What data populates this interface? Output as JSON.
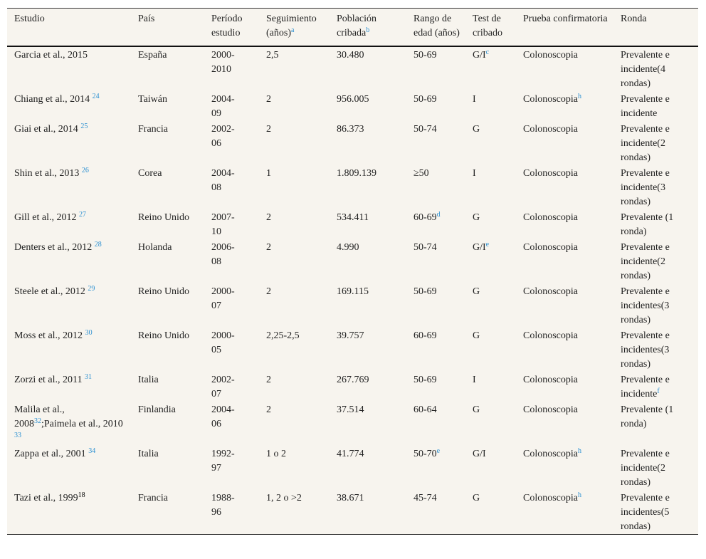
{
  "table": {
    "header": [
      [
        "Estudio"
      ],
      [
        "País"
      ],
      [
        "Período estudio"
      ],
      [
        "Seguimiento (años)",
        {
          "sup": "a"
        }
      ],
      [
        "Población cribada",
        {
          "sup": "b"
        }
      ],
      [
        "Rango de edad (años)"
      ],
      [
        "Test de cribado"
      ],
      [
        "Prueba confirmatoria"
      ],
      [
        "Ronda"
      ]
    ],
    "rows": [
      [
        [
          "Garcia et al., 2015"
        ],
        [
          "España"
        ],
        [
          "2000-2010"
        ],
        [
          "2,5"
        ],
        [
          "30.480"
        ],
        [
          "50-69"
        ],
        [
          "G/I",
          {
            "sup": "c"
          }
        ],
        [
          "Colonoscopia"
        ],
        [
          "Prevalente e incidente(4 rondas)"
        ]
      ],
      [
        [
          "Chiang et al., 2014 ",
          {
            "sup": "24"
          }
        ],
        [
          "Taiwán"
        ],
        [
          "2004-09"
        ],
        [
          "2"
        ],
        [
          "956.005"
        ],
        [
          "50-69"
        ],
        [
          "I"
        ],
        [
          "Colonoscopia",
          {
            "sup": "h"
          }
        ],
        [
          "Prevalente e incidente"
        ]
      ],
      [
        [
          "Giai et al., 2014 ",
          {
            "sup": "25"
          }
        ],
        [
          "Francia"
        ],
        [
          "2002-06"
        ],
        [
          "2"
        ],
        [
          "86.373"
        ],
        [
          "50-74"
        ],
        [
          "G"
        ],
        [
          "Colonoscopia"
        ],
        [
          "Prevalente e incidente(2 rondas)"
        ]
      ],
      [
        [
          "Shin et al., 2013 ",
          {
            "sup": "26"
          }
        ],
        [
          "Corea"
        ],
        [
          "2004-08"
        ],
        [
          "1"
        ],
        [
          "1.809.139"
        ],
        [
          "≥50"
        ],
        [
          "I"
        ],
        [
          "Colonoscopia"
        ],
        [
          "Prevalente e incidente(3 rondas)"
        ]
      ],
      [
        [
          "Gill et al., 2012 ",
          {
            "sup": "27"
          }
        ],
        [
          "Reino Unido"
        ],
        [
          "2007-10"
        ],
        [
          "2"
        ],
        [
          "534.411"
        ],
        [
          "60-69",
          {
            "sup": "d"
          }
        ],
        [
          "G"
        ],
        [
          "Colonoscopia"
        ],
        [
          "Prevalente (1 ronda)"
        ]
      ],
      [
        [
          "Denters et al., 2012 ",
          {
            "sup": "28"
          }
        ],
        [
          "Holanda"
        ],
        [
          "2006-08"
        ],
        [
          "2"
        ],
        [
          "4.990"
        ],
        [
          "50-74"
        ],
        [
          "G/I",
          {
            "sup": "e"
          }
        ],
        [
          "Colonoscopia"
        ],
        [
          "Prevalente e incidente(2 rondas)"
        ]
      ],
      [
        [
          "Steele et al., 2012 ",
          {
            "sup": "29"
          }
        ],
        [
          "Reino Unido"
        ],
        [
          "2000-07"
        ],
        [
          "2"
        ],
        [
          "169.115"
        ],
        [
          "50-69"
        ],
        [
          "G"
        ],
        [
          "Colonoscopia"
        ],
        [
          "Prevalente e incidentes(3 rondas)"
        ]
      ],
      [
        [
          "Moss et al., 2012 ",
          {
            "sup": "30"
          }
        ],
        [
          "Reino Unido"
        ],
        [
          "2000-05"
        ],
        [
          "2,25-2,5"
        ],
        [
          "39.757"
        ],
        [
          "60-69"
        ],
        [
          "G"
        ],
        [
          "Colonoscopia"
        ],
        [
          "Prevalente e incidentes(3 rondas)"
        ]
      ],
      [
        [
          "Zorzi et al., 2011 ",
          {
            "sup": "31"
          }
        ],
        [
          "Italia"
        ],
        [
          "2002-07"
        ],
        [
          "2"
        ],
        [
          "267.769"
        ],
        [
          "50-69"
        ],
        [
          "I"
        ],
        [
          "Colonoscopia"
        ],
        [
          "Prevalente e incidente",
          {
            "sup": "f"
          }
        ]
      ],
      [
        [
          "Malila et al., 2008",
          {
            "sup": "32"
          },
          ";Paimela et al., 2010 ",
          {
            "sup": "33"
          }
        ],
        [
          "Finlandia"
        ],
        [
          "2004-06"
        ],
        [
          "2"
        ],
        [
          "37.514"
        ],
        [
          "60-64"
        ],
        [
          "G"
        ],
        [
          "Colonoscopia"
        ],
        [
          "Prevalente (1 ronda)"
        ]
      ],
      [
        [
          "Zappa et al., 2001 ",
          {
            "sup": "34"
          }
        ],
        [
          "Italia"
        ],
        [
          "1992-97"
        ],
        [
          "1 o 2"
        ],
        [
          "41.774"
        ],
        [
          "50-70",
          {
            "sup": "e"
          }
        ],
        [
          "G/I"
        ],
        [
          "Colonoscopia",
          {
            "sup": "h"
          }
        ],
        [
          "Prevalente e incidente(2 rondas)"
        ]
      ],
      [
        [
          "Tazi et al., 1999",
          {
            "sup": "18",
            "color": "#000000"
          }
        ],
        [
          "Francia"
        ],
        [
          "1988-96"
        ],
        [
          "1, 2 o >2"
        ],
        [
          "38.671"
        ],
        [
          "45-74"
        ],
        [
          "G"
        ],
        [
          "Colonoscopia",
          {
            "sup": "h"
          }
        ],
        [
          "Prevalente e incidentes(5 rondas)"
        ]
      ]
    ]
  }
}
